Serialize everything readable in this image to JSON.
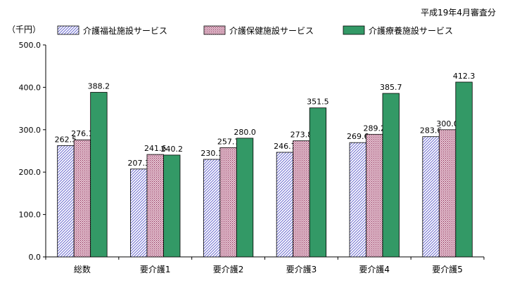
{
  "note": "平成19年4月審査分",
  "chart_data": {
    "type": "bar",
    "title": "",
    "unit_label": "（千円）",
    "xlabel": "",
    "ylabel": "",
    "ylim": [
      0,
      500
    ],
    "yticks": [
      "0.0",
      "100.0",
      "200.0",
      "300.0",
      "400.0",
      "500.0"
    ],
    "grid": false,
    "legend_position": "top",
    "categories": [
      "総数",
      "要介護1",
      "要介護2",
      "要介護3",
      "要介護4",
      "要介護5"
    ],
    "series": [
      {
        "name": "介護福祉施設サービス",
        "values": [
          262.5,
          207.3,
          230.1,
          246.7,
          269.6,
          283.6
        ],
        "labels": [
          "262.5",
          "207.3",
          "230.1",
          "246.7",
          "269.6",
          "283.6"
        ],
        "fill": "hatch-blue",
        "color": "#b8b8e8"
      },
      {
        "name": "介護保健施設サービス",
        "values": [
          276.1,
          241.6,
          257.7,
          273.8,
          289.2,
          300.0
        ],
        "labels": [
          "276.1",
          "241.6",
          "257.7",
          "273.8",
          "289.2",
          "300.0"
        ],
        "fill": "dots-pink",
        "color": "#d4a0b4"
      },
      {
        "name": "介護療養施設サービス",
        "values": [
          388.2,
          240.2,
          280.0,
          351.5,
          385.7,
          412.3
        ],
        "labels": [
          "388.2",
          "240.2",
          "280.0",
          "351.5",
          "385.7",
          "412.3"
        ],
        "fill": "solid-green",
        "color": "#339966"
      }
    ]
  }
}
